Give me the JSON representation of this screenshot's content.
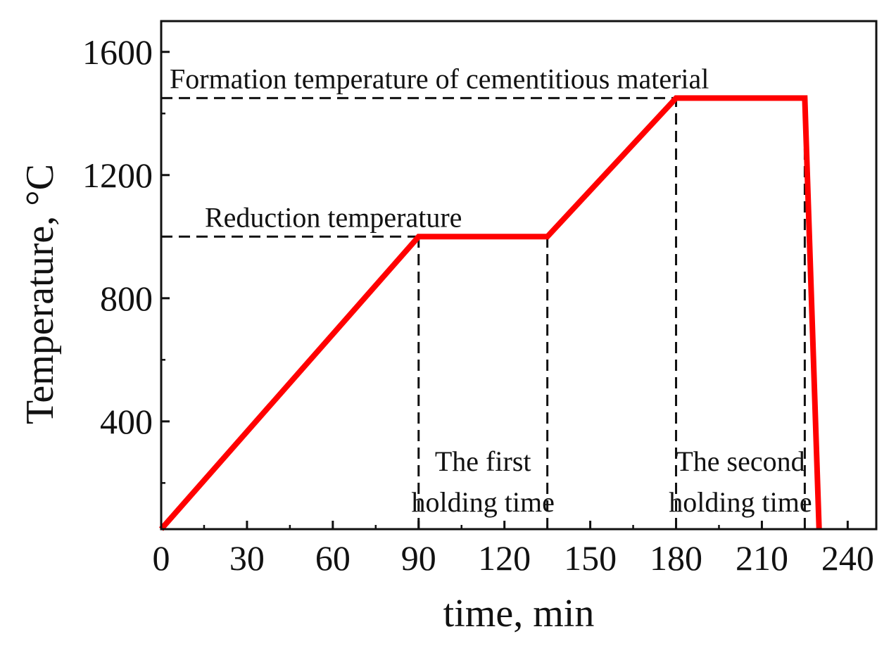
{
  "chart_data": {
    "type": "line",
    "title": "",
    "xlabel": "time, min",
    "ylabel": "Temperature, °C",
    "xlim": [
      0,
      250
    ],
    "ylim": [
      50,
      1700
    ],
    "xticks": [
      0,
      30,
      60,
      90,
      120,
      150,
      180,
      210,
      240
    ],
    "yticks": [
      400,
      800,
      1200,
      1600
    ],
    "series": [
      {
        "name": "Heating profile",
        "color": "#ff0000",
        "points": [
          [
            0,
            50
          ],
          [
            90,
            1000
          ],
          [
            135,
            1000
          ],
          [
            180,
            1450
          ],
          [
            225,
            1450
          ],
          [
            230,
            50
          ]
        ]
      }
    ],
    "reference_lines": [
      {
        "label": "Formation temperature of cementitious material",
        "orientation": "horizontal",
        "value": 1450,
        "from": 0,
        "to": 225
      },
      {
        "label": "Reduction temperature",
        "orientation": "horizontal",
        "value": 1000,
        "from": 0,
        "to": 90
      },
      {
        "label": "",
        "orientation": "vertical",
        "value": 90,
        "from": 50,
        "to": 1000
      },
      {
        "label": "",
        "orientation": "vertical",
        "value": 135,
        "from": 50,
        "to": 1000
      },
      {
        "label": "",
        "orientation": "vertical",
        "value": 180,
        "from": 50,
        "to": 1450
      },
      {
        "label": "",
        "orientation": "vertical",
        "value": 225,
        "from": 50,
        "to": 1450
      }
    ],
    "annotations": [
      {
        "lines": [
          "The first",
          "holding time"
        ],
        "x": 112.5,
        "y": 240
      },
      {
        "lines": [
          "The second",
          "holding time"
        ],
        "x": 202.5,
        "y": 240
      }
    ]
  }
}
